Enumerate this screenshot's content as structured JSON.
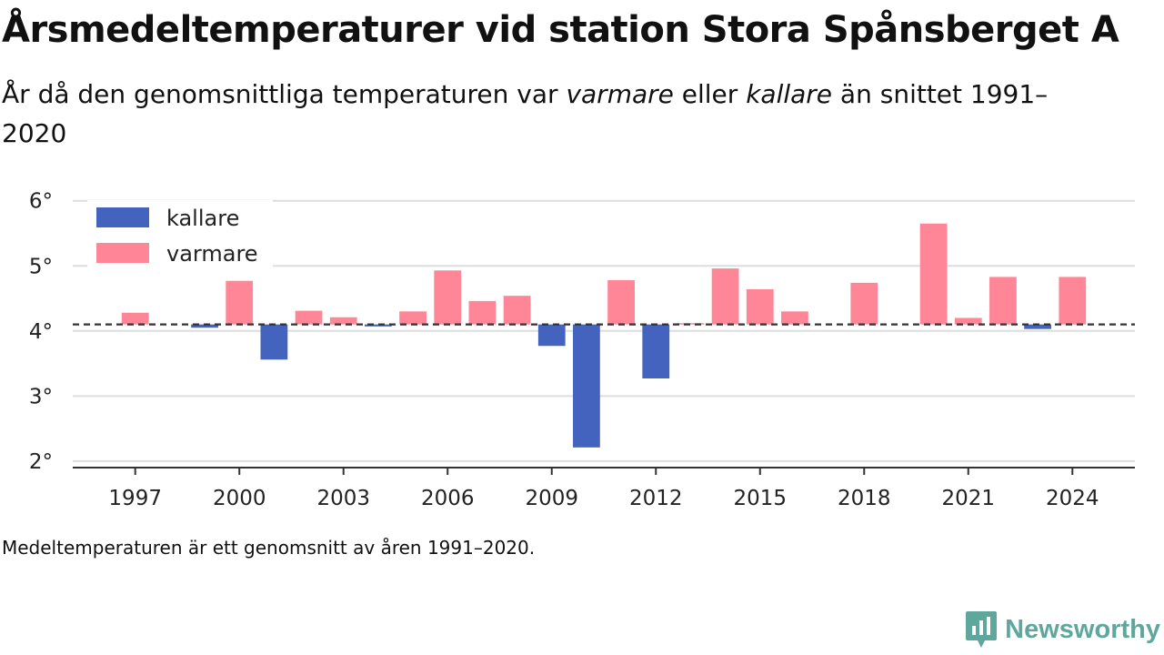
{
  "title": "Årsmedeltemperaturer vid station Stora Spånsberget A",
  "subtitle": {
    "part1": "År då den genomsnittliga temperaturen var ",
    "warm_word": "varmare",
    "part2": " eller ",
    "cold_word": "kallare",
    "part3": " än snittet 1991–2020"
  },
  "footnote": "Medeltemperaturen är ett genomsnitt av åren 1991–2020.",
  "brand": "Newsworthy",
  "colors": {
    "kallare": "#4363be",
    "varmare": "#fe8696",
    "grid": "#dddddd",
    "axis": "#333333",
    "brand": "#5fa79d"
  },
  "chart_data": {
    "type": "bar",
    "baseline": 4.1,
    "baseline_style": "dashed",
    "x": [
      1997,
      1999,
      2000,
      2001,
      2002,
      2003,
      2004,
      2005,
      2006,
      2007,
      2008,
      2009,
      2010,
      2011,
      2012,
      2013,
      2014,
      2015,
      2016,
      2018,
      2020,
      2021,
      2022,
      2023,
      2024
    ],
    "values": [
      4.28,
      4.05,
      4.77,
      3.56,
      4.31,
      4.21,
      4.07,
      4.3,
      4.93,
      4.46,
      4.54,
      3.77,
      2.21,
      4.78,
      3.27,
      4.12,
      4.96,
      4.64,
      4.3,
      4.74,
      5.65,
      4.2,
      4.83,
      4.03,
      4.83
    ],
    "xticks": [
      "1997",
      "2000",
      "2003",
      "2006",
      "2009",
      "2012",
      "2015",
      "2018",
      "2021",
      "2024"
    ],
    "yticks": [
      "2°",
      "3°",
      "4°",
      "5°",
      "6°"
    ],
    "ylim": [
      1.9,
      6.15
    ],
    "xlim": [
      1995.2,
      2025.8
    ],
    "grid": true,
    "legend": {
      "placement": "top-left",
      "items": [
        "kallare",
        "varmare"
      ]
    },
    "series": [
      {
        "name": "kallare",
        "rule": "below baseline"
      },
      {
        "name": "varmare",
        "rule": "above baseline"
      }
    ]
  }
}
